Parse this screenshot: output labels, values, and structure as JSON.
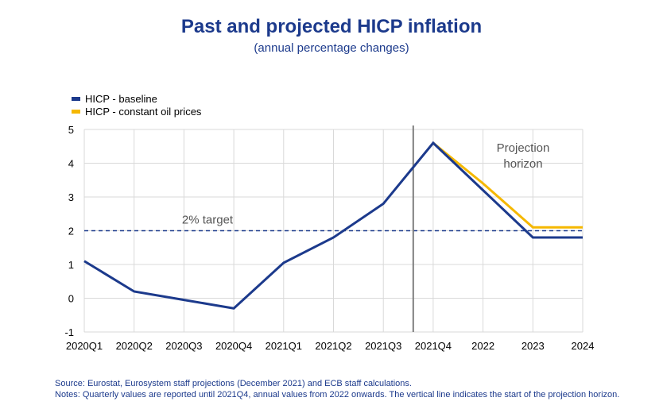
{
  "chart_data": {
    "type": "line",
    "title": "Past and projected HICP inflation",
    "subtitle": "(annual percentage changes)",
    "categories": [
      "2020Q1",
      "2020Q2",
      "2020Q3",
      "2020Q4",
      "2021Q1",
      "2021Q2",
      "2021Q3",
      "2021Q4",
      "2022",
      "2023",
      "2024"
    ],
    "series": [
      {
        "name": "HICP - baseline",
        "color": "#1c3a8c",
        "values": [
          1.1,
          0.2,
          -0.05,
          -0.3,
          1.05,
          1.8,
          2.8,
          4.6,
          3.2,
          1.8,
          1.8
        ]
      },
      {
        "name": "HICP - constant oil prices",
        "color": "#f5b800",
        "values": [
          null,
          null,
          null,
          null,
          null,
          null,
          null,
          4.6,
          3.4,
          2.1,
          2.1
        ]
      }
    ],
    "ylim": [
      -1,
      5
    ],
    "yticks": [
      -1,
      0,
      1,
      2,
      3,
      4,
      5
    ],
    "target": {
      "value": 2,
      "label": "2% target"
    },
    "projection_start_index": 6.6,
    "projection_label": [
      "Projection",
      "horizon"
    ],
    "grid": true,
    "legend_position": "top-left"
  },
  "footer": {
    "source": "Source: Eurostat, Eurosystem staff projections (December 2021) and ECB staff calculations.",
    "notes": "Notes: Quarterly values are reported until 2021Q4, annual values from 2022 onwards. The vertical line indicates the start of the projection horizon."
  }
}
